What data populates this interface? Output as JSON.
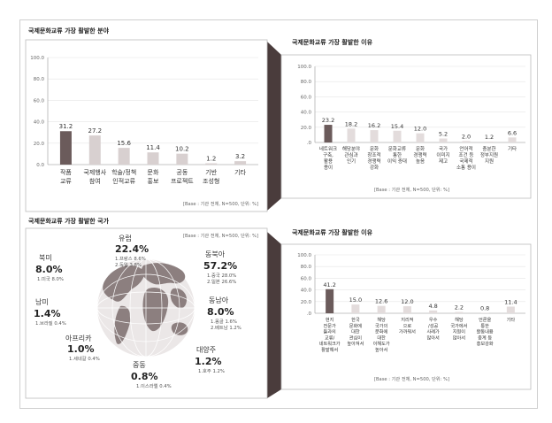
{
  "panels": {
    "fields": {
      "title": "국제문화교류 가장 활발한 분야",
      "base": "[Base : 기관 전체, N=500, 단위: %]"
    },
    "reasons_top": {
      "title": "국제문화교류 가장 활발한 이유",
      "base": "[Base : 기관 전체, N=500, 단위: %]"
    },
    "countries": {
      "title": "국제문화교류 가장 활발한 국가",
      "base": "[Base : 기관 전체, N=500, 단위: %]"
    },
    "reasons_bottom": {
      "title": "국제문화교류 가장 활발한 이유",
      "base": "[Base : 기관 전체, N=500, 단위: %]"
    }
  },
  "chart_data": [
    {
      "type": "bar",
      "title": "국제문화교류 가장 활발한 분야",
      "yticks": [
        "0.0",
        "20.0",
        "40.0",
        "60.0",
        "80.0",
        "100.0"
      ],
      "ylim": [
        0,
        100
      ],
      "categories": [
        [
          "작품",
          "교류"
        ],
        [
          "국제행사",
          "참여"
        ],
        [
          "학술/정책",
          "인적교류"
        ],
        [
          "문화",
          "홍보"
        ],
        [
          "공동",
          "프로젝트"
        ],
        [
          "기반",
          "조성형"
        ],
        [
          "기타"
        ]
      ],
      "values": [
        31.2,
        27.2,
        15.6,
        11.4,
        10.2,
        1.2,
        3.2
      ],
      "value_labels": [
        "31.2",
        "27.2",
        "15.6",
        "11.4",
        "10.2",
        "1.2",
        "3.2"
      ],
      "highlight_index": 0,
      "colors": {
        "highlight": "#6b5b5b",
        "bar": "#d8d0d0"
      }
    },
    {
      "type": "bar",
      "title": "국제문화교류 가장 활발한 이유",
      "yticks": [
        ".0",
        "20.0",
        "40.0",
        "60.0",
        "80.0",
        "100.0"
      ],
      "ylim": [
        0,
        100
      ],
      "categories": [
        [
          "네트워크",
          "구축,",
          "활용",
          "용이"
        ],
        [
          "해당분야",
          "관심과",
          "인기"
        ],
        [
          "문화",
          "창조적",
          "경쟁력",
          "강화"
        ],
        [
          "문화교류",
          "통한",
          "이익 증대"
        ],
        [
          "문화",
          "경쟁력",
          "높음"
        ],
        [
          "국가",
          "이미지",
          "제고"
        ],
        [
          "언어적",
          "조건 등",
          "국제적",
          "소통 용이"
        ],
        [
          "충분한",
          "정부지원",
          "지원"
        ],
        [
          "기타"
        ]
      ],
      "values": [
        23.2,
        18.2,
        16.2,
        15.4,
        12.0,
        5.2,
        2.0,
        1.2,
        6.6
      ],
      "value_labels": [
        "23.2",
        "18.2",
        "16.2",
        "15.4",
        "12.0",
        "5.2",
        "2.0",
        "1.2",
        "6.6"
      ],
      "highlight_index": 0,
      "colors": {
        "highlight": "#6b5b5b",
        "bar": "#e3dcdc"
      }
    },
    {
      "type": "map",
      "title": "국제문화교류 가장 활발한 국가",
      "regions": [
        {
          "name": "유럽",
          "value": "22.4%",
          "details": [
            "1.프랑스 8.6%",
            "2.독일    3.8%"
          ]
        },
        {
          "name": "동북아",
          "value": "57.2%",
          "details": [
            "1.중국 28.0%",
            "2.일본 26.6%"
          ]
        },
        {
          "name": "북미",
          "value": "8.0%",
          "details": [
            "1.미국 8.0%"
          ]
        },
        {
          "name": "남미",
          "value": "1.4%",
          "details": [
            "1.브라질 0.4%"
          ]
        },
        {
          "name": "동남아",
          "value": "8.0%",
          "details": [
            "1.몽골 1.6%",
            "2.베트남 1.2%"
          ]
        },
        {
          "name": "아프리카",
          "value": "1.0%",
          "details": [
            "1.세네갈 0.4%"
          ]
        },
        {
          "name": "대양주",
          "value": "1.2%",
          "details": [
            "1.호주 1.2%"
          ]
        },
        {
          "name": "중동",
          "value": "0.8%",
          "details": [
            "1.이스라엘 0.4%"
          ]
        }
      ],
      "colors": {
        "land": "#8c7f7f",
        "ocean": "#ece8e8"
      }
    },
    {
      "type": "bar",
      "title": "국제문화교류 가장 활발한 이유",
      "yticks": [
        ".0",
        "20.0",
        "40.0",
        "60.0",
        "80.0",
        "100.0"
      ],
      "ylim": [
        0,
        100
      ],
      "categories": [
        [
          "현지",
          "전문가",
          "들과의",
          "교류/",
          "네트워크가",
          "활발해서"
        ],
        [
          "한국",
          "문화에",
          "대한",
          "관심이",
          "높아져서"
        ],
        [
          "해당",
          "국가의",
          "문화에",
          "대한",
          "이해도가",
          "높아서"
        ],
        [
          "지리적",
          "으로",
          "가까워서"
        ],
        [
          "우수",
          "/성공",
          "사례가",
          "많아서"
        ],
        [
          "해당",
          "국가에서",
          "지원이",
          "많아서"
        ],
        [
          "언론을",
          "통한",
          "활동내용",
          "중계 등",
          "홍보강화"
        ],
        [
          "기타"
        ]
      ],
      "values": [
        41.2,
        15.0,
        12.6,
        12.0,
        4.8,
        2.2,
        0.8,
        11.4
      ],
      "value_labels": [
        "41.2",
        "15.0",
        "12.6",
        "12.0",
        "4.8",
        "2.2",
        "0.8",
        "11.4"
      ],
      "highlight_index": 0,
      "colors": {
        "highlight": "#6b5b5b",
        "bar": "#e3dcdc"
      }
    }
  ]
}
